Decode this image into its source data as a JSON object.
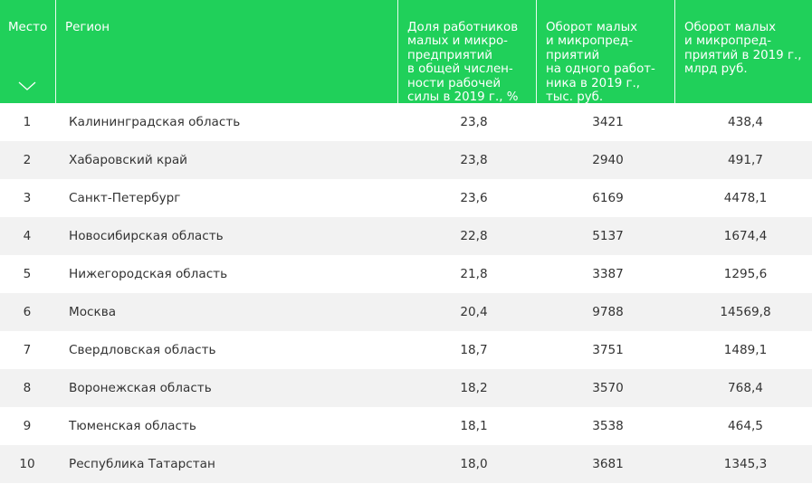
{
  "colors": {
    "header_bg": "#20d05a",
    "header_text": "#ffffff",
    "row_alt": "#f2f2f2"
  },
  "header": {
    "place": "Место",
    "region": "Регион",
    "share": "Доля работников\nмалых и микро-\nпредприятий\nв общей числен-\nности рабочей\nсилы в 2019 г., %",
    "turnover_per_worker": "Оборот малых\nи микропред-\nприятий\nна одного работ-\nника в 2019 г.,\nтыс. руб.",
    "turnover_total": "Оборот малых\nи микропред-\nприятий в 2019 г.,\nмлрд руб.",
    "sort_icon": "chevron-down-icon"
  },
  "rows": [
    {
      "place": "1",
      "region": "Калининградская область",
      "share": "23,8",
      "per_worker": "3421",
      "total": "438,4"
    },
    {
      "place": "2",
      "region": "Хабаровский край",
      "share": "23,8",
      "per_worker": "2940",
      "total": "491,7"
    },
    {
      "place": "3",
      "region": "Санкт-Петербург",
      "share": "23,6",
      "per_worker": "6169",
      "total": "4478,1"
    },
    {
      "place": "4",
      "region": "Новосибирская область",
      "share": "22,8",
      "per_worker": "5137",
      "total": "1674,4"
    },
    {
      "place": "5",
      "region": "Нижегородская область",
      "share": "21,8",
      "per_worker": "3387",
      "total": "1295,6"
    },
    {
      "place": "6",
      "region": "Москва",
      "share": "20,4",
      "per_worker": "9788",
      "total": "14569,8"
    },
    {
      "place": "7",
      "region": "Свердловская область",
      "share": "18,7",
      "per_worker": "3751",
      "total": "1489,1"
    },
    {
      "place": "8",
      "region": "Воронежская область",
      "share": "18,2",
      "per_worker": "3570",
      "total": "768,4"
    },
    {
      "place": "9",
      "region": "Тюменская область",
      "share": "18,1",
      "per_worker": "3538",
      "total": "464,5"
    },
    {
      "place": "10",
      "region": "Республика Татарстан",
      "share": "18,0",
      "per_worker": "3681",
      "total": "1345,3"
    }
  ]
}
